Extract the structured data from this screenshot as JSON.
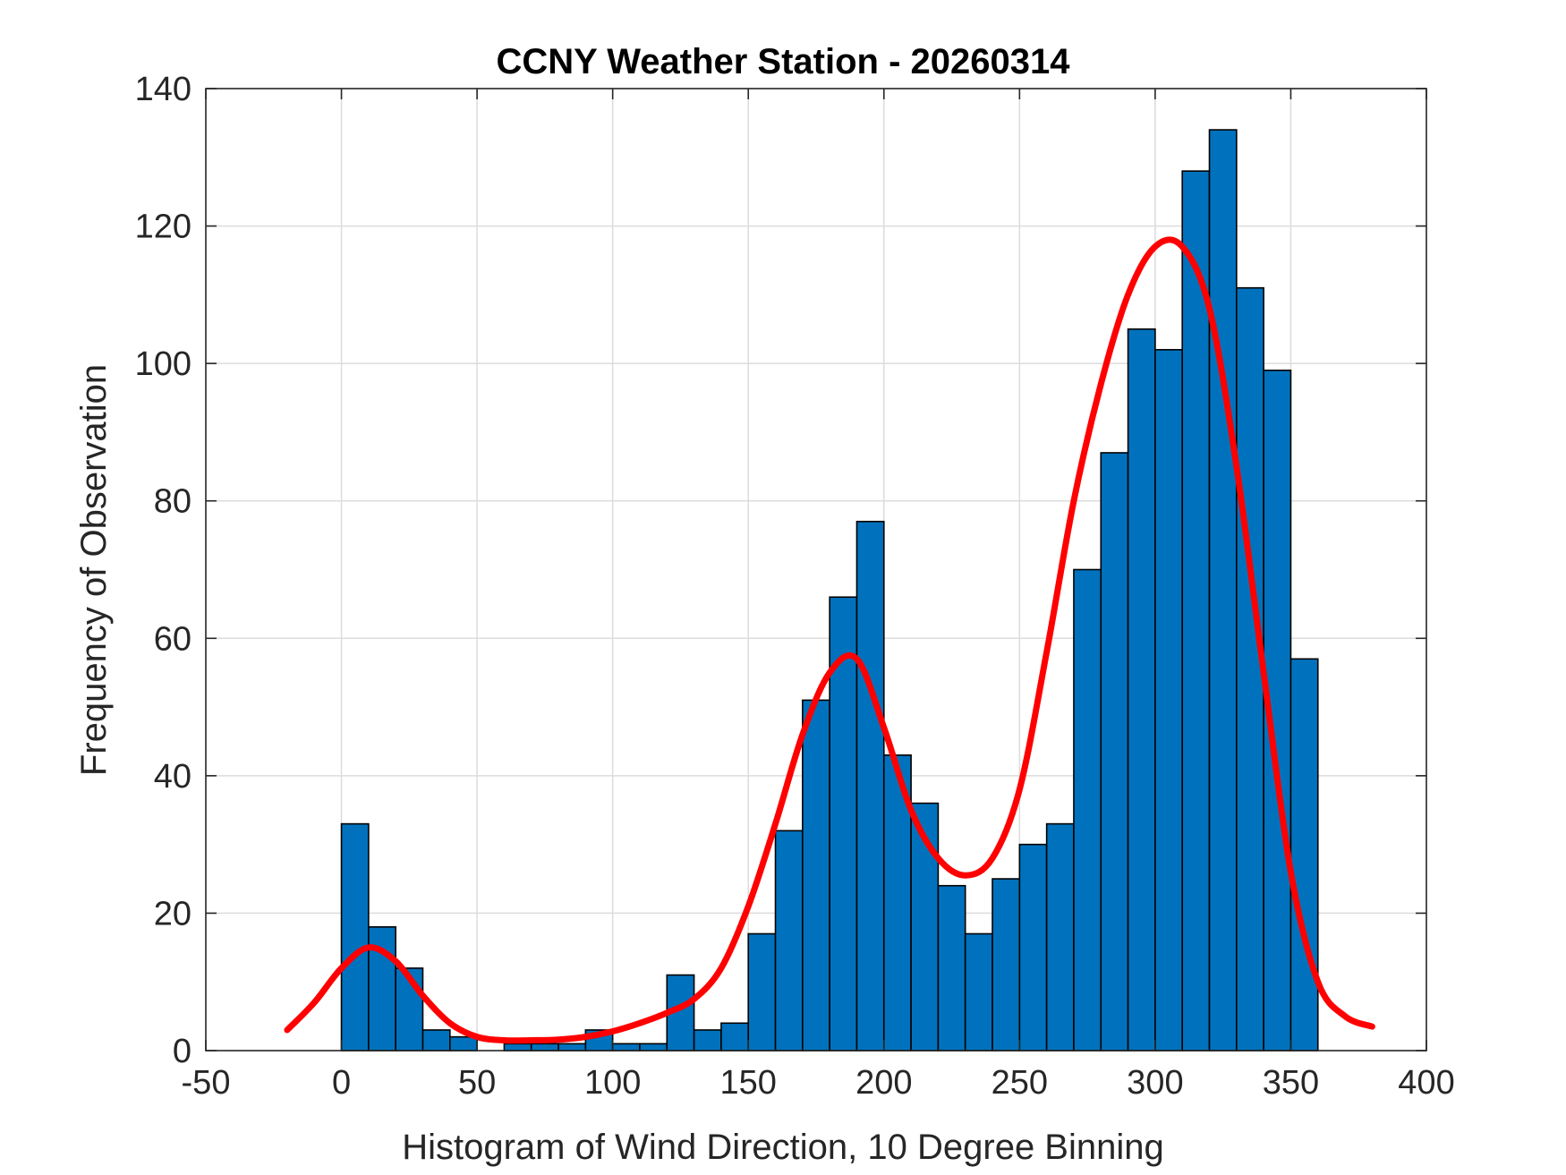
{
  "chart_data": {
    "type": "bar",
    "title": "CCNY Weather Station - 20260314",
    "xlabel": "Histogram of Wind Direction, 10 Degree Binning",
    "ylabel": "Frequency of Observation",
    "xlim": [
      -50,
      400
    ],
    "ylim": [
      0,
      140
    ],
    "xticks": [
      -50,
      0,
      50,
      100,
      150,
      200,
      250,
      300,
      350,
      400
    ],
    "yticks": [
      0,
      20,
      40,
      60,
      80,
      100,
      120,
      140
    ],
    "grid": true,
    "bin_width": 10,
    "bin_edges_start": [
      0,
      10,
      20,
      30,
      40,
      50,
      60,
      70,
      80,
      90,
      100,
      110,
      120,
      130,
      140,
      150,
      160,
      170,
      180,
      190,
      200,
      210,
      220,
      230,
      240,
      250,
      260,
      270,
      280,
      290,
      300,
      310,
      320,
      330,
      340,
      350
    ],
    "counts": [
      33,
      18,
      12,
      3,
      2,
      0,
      1,
      1,
      1,
      3,
      1,
      1,
      11,
      3,
      4,
      17,
      32,
      51,
      66,
      77,
      43,
      36,
      24,
      17,
      25,
      30,
      33,
      70,
      87,
      105,
      102,
      128,
      134,
      111,
      99,
      57
    ],
    "fit_curve": {
      "name": "fitted density",
      "x": [
        -20,
        -10,
        0,
        10,
        20,
        30,
        40,
        50,
        60,
        70,
        80,
        90,
        100,
        110,
        120,
        130,
        140,
        150,
        160,
        170,
        180,
        190,
        200,
        210,
        220,
        230,
        240,
        250,
        260,
        270,
        280,
        290,
        300,
        310,
        320,
        330,
        340,
        350,
        360,
        370,
        380
      ],
      "y": [
        3,
        7,
        12,
        15,
        13,
        8,
        4,
        2,
        1.5,
        1.5,
        1.6,
        2,
        2.8,
        4,
        5.5,
        7.5,
        12,
        21,
        33,
        46,
        55,
        57,
        47,
        35,
        28,
        25.5,
        28,
        38,
        58,
        80,
        97,
        110,
        117,
        117,
        108,
        85,
        55,
        26,
        10,
        5,
        3.5
      ]
    },
    "colors": {
      "bar_fill": "#0072BD",
      "bar_edge": "#000000",
      "curve": "#FF0000"
    }
  }
}
